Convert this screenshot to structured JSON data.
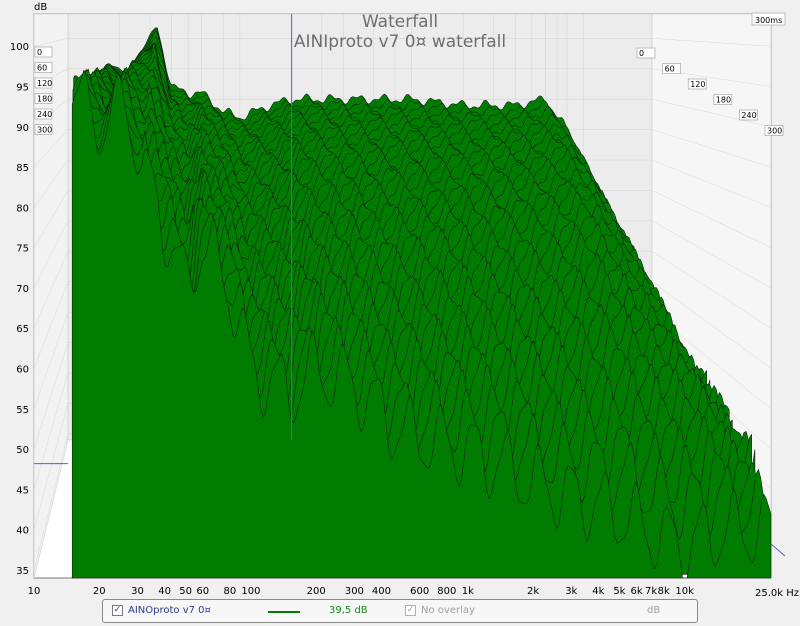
{
  "chart_data": {
    "type": "area",
    "title": "Waterfall",
    "subtitle": "AINIproto v7 0¤ waterfall",
    "ylabel": "dB",
    "xlabel": "",
    "x_axis_end_label": "25,0k Hz",
    "x_scale": "log",
    "xlim": [
      10,
      25000
    ],
    "ylim": [
      34,
      104
    ],
    "grid": true,
    "x_ticks": [
      {
        "value": 10,
        "label": "10"
      },
      {
        "value": 20,
        "label": "20"
      },
      {
        "value": 30,
        "label": "30"
      },
      {
        "value": 40,
        "label": "40"
      },
      {
        "value": 50,
        "label": "50"
      },
      {
        "value": 60,
        "label": "60"
      },
      {
        "value": 80,
        "label": "80"
      },
      {
        "value": 100,
        "label": "100"
      },
      {
        "value": 200,
        "label": "200"
      },
      {
        "value": 300,
        "label": "300"
      },
      {
        "value": 400,
        "label": "400"
      },
      {
        "value": 600,
        "label": "600"
      },
      {
        "value": 800,
        "label": "800"
      },
      {
        "value": 1000,
        "label": "1k"
      },
      {
        "value": 2000,
        "label": "2k"
      },
      {
        "value": 3000,
        "label": "3k"
      },
      {
        "value": 4000,
        "label": "4k"
      },
      {
        "value": 5000,
        "label": "5k"
      },
      {
        "value": 6000,
        "label": "6k"
      },
      {
        "value": 7000,
        "label": "7k"
      },
      {
        "value": 8000,
        "label": "8k"
      },
      {
        "value": 10000,
        "label": "10k"
      }
    ],
    "y_ticks": [
      35,
      40,
      45,
      50,
      55,
      60,
      65,
      70,
      75,
      80,
      85,
      90,
      95,
      100
    ],
    "time_slices_ms": [
      "0",
      "60",
      "120",
      "180",
      "240",
      "300"
    ],
    "time_end_label": "300ms",
    "front_slice_envelope": {
      "x": [
        15,
        17,
        20,
        25,
        30,
        35,
        40,
        50,
        60,
        80,
        100,
        150,
        200,
        300,
        500,
        1000,
        2000,
        5000,
        8000,
        10000,
        15000
      ],
      "y": [
        94,
        95,
        88,
        95,
        86,
        82,
        78,
        70,
        76,
        70,
        60,
        57,
        60,
        58,
        52,
        50,
        46,
        42,
        39,
        38,
        40
      ]
    },
    "peak_envelope": {
      "x": [
        15,
        18,
        22,
        28,
        33,
        40,
        50,
        60,
        80,
        100,
        150,
        200,
        300,
        500,
        1000,
        2000,
        4000,
        6000,
        8000,
        10000,
        15000,
        20000,
        25000
      ],
      "y": [
        94,
        96,
        94,
        99,
        102,
        92,
        91,
        91,
        88,
        87,
        89,
        90,
        90,
        90,
        90,
        89,
        89,
        90,
        85,
        80,
        70,
        58,
        55
      ]
    },
    "series": [
      {
        "name": "AINOproto v7 0¤",
        "color": "#007d00",
        "level_label": "39,5 dB",
        "enabled": true
      },
      {
        "name": "No overlay",
        "enabled": false,
        "unit": "dB"
      }
    ],
    "marker_x": 200,
    "marker_y_db": 48.2
  },
  "legend": {
    "series_name": "AINOproto v7 0¤",
    "level_value": "39,5 dB",
    "overlay_label": "No overlay",
    "unit_label": "dB",
    "check_mark": "✓"
  },
  "colors": {
    "fill": "#007d00",
    "edge": "#0a1a0a",
    "cursor": "#5a5ad8"
  }
}
